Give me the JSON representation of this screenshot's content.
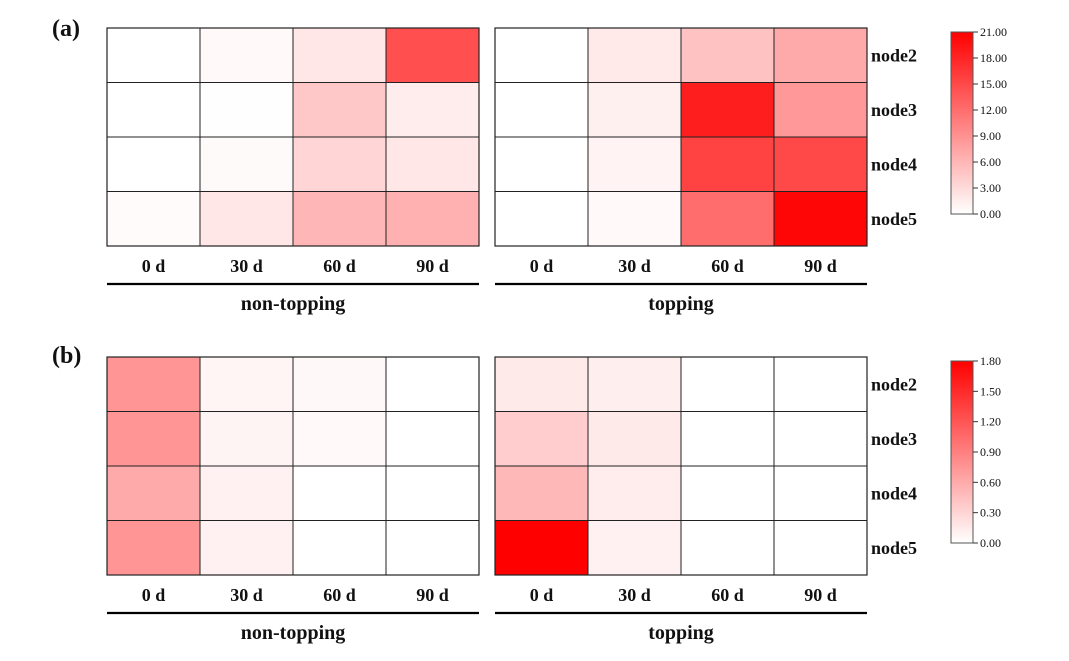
{
  "colors": {
    "high": "#ff0000",
    "low": "#ffffff",
    "grid": "#222222"
  },
  "chart_data": [
    {
      "type": "heatmap",
      "panel_label": "(a)",
      "groups": [
        "non-topping",
        "topping"
      ],
      "columns": [
        "0 d",
        "30 d",
        "60 d",
        "90 d"
      ],
      "rows": [
        "node2",
        "node3",
        "node4",
        "node5"
      ],
      "vmin": 0,
      "vmax": 21,
      "colorbar_ticks": [
        "0.00",
        "3.00",
        "6.00",
        "9.00",
        "12.00",
        "15.00",
        "18.00",
        "21.00"
      ],
      "values": [
        [
          [
            0.0,
            0.5,
            2.0,
            14.5
          ],
          [
            0.0,
            0.1,
            4.5,
            1.5
          ],
          [
            0.0,
            0.4,
            3.5,
            2.0
          ],
          [
            0.3,
            2.0,
            6.0,
            6.5
          ]
        ],
        [
          [
            0.0,
            1.8,
            5.0,
            7.0
          ],
          [
            0.0,
            1.2,
            18.5,
            8.5
          ],
          [
            0.0,
            1.0,
            15.5,
            15.0
          ],
          [
            0.0,
            0.5,
            12.0,
            20.5
          ]
        ]
      ]
    },
    {
      "type": "heatmap",
      "panel_label": "(b)",
      "groups": [
        "non-topping",
        "topping"
      ],
      "columns": [
        "0 d",
        "30 d",
        "60 d",
        "90 d"
      ],
      "rows": [
        "node2",
        "node3",
        "node4",
        "node5"
      ],
      "vmin": 0,
      "vmax": 1.8,
      "colorbar_ticks": [
        "0.00",
        "0.30",
        "0.60",
        "0.90",
        "1.20",
        "1.50",
        "1.80"
      ],
      "values": [
        [
          [
            0.75,
            0.07,
            0.05,
            0.0
          ],
          [
            0.75,
            0.08,
            0.04,
            0.0
          ],
          [
            0.6,
            0.1,
            0.0,
            0.0
          ],
          [
            0.75,
            0.1,
            0.0,
            0.0
          ]
        ],
        [
          [
            0.15,
            0.12,
            0.0,
            0.0
          ],
          [
            0.35,
            0.15,
            0.0,
            0.0
          ],
          [
            0.5,
            0.13,
            0.0,
            0.0
          ],
          [
            1.8,
            0.1,
            0.0,
            0.0
          ]
        ]
      ]
    }
  ]
}
